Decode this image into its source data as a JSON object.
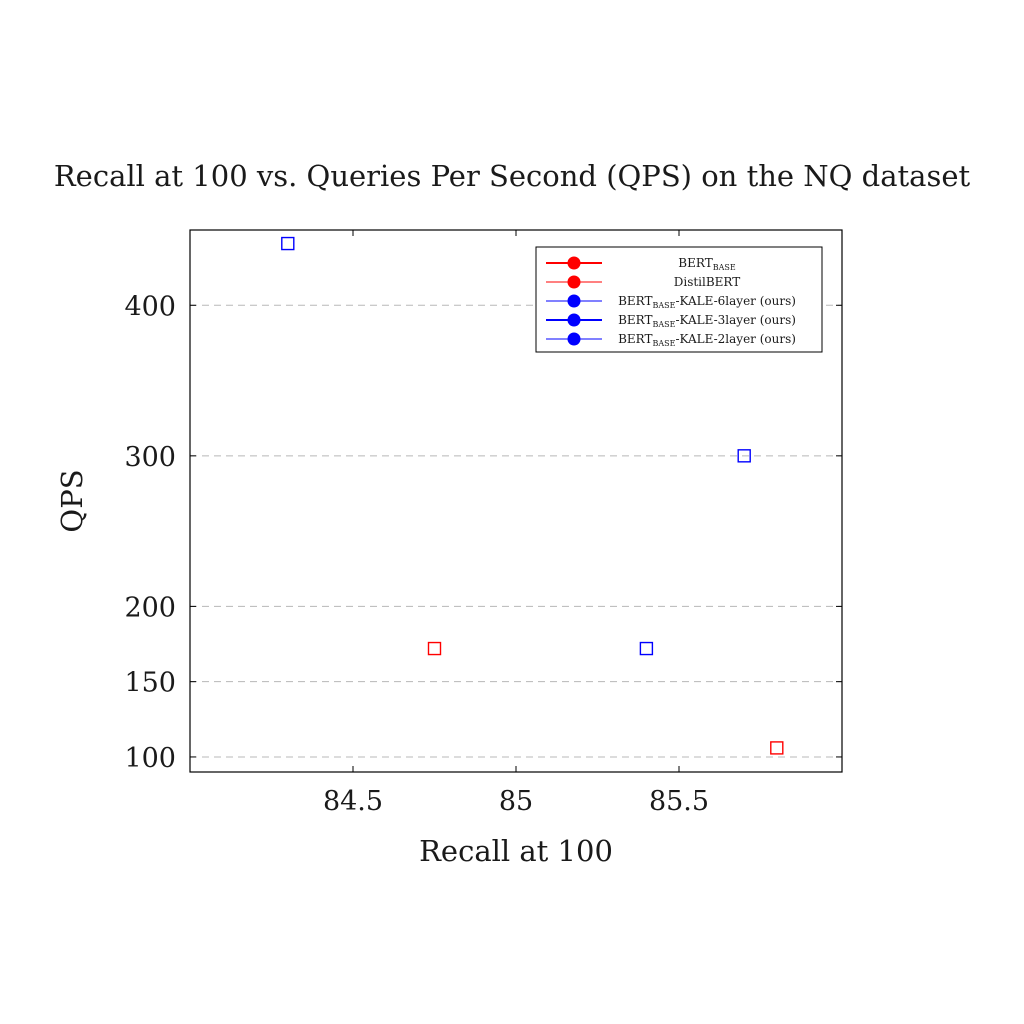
{
  "chart_data": {
    "type": "scatter",
    "title": "Recall at 100 vs. Queries Per Second (QPS) on the NQ dataset",
    "xlabel": "Recall at 100",
    "ylabel": "QPS",
    "xlim": [
      84.0,
      86.0
    ],
    "ylim": [
      90,
      450
    ],
    "x_ticks": [
      84.5,
      85,
      85.5
    ],
    "x_tick_labels": [
      "84.5",
      "85",
      "85.5"
    ],
    "y_ticks": [
      100,
      150,
      200,
      300,
      400
    ],
    "y_tick_labels": [
      "100",
      "150",
      "200",
      "300",
      "400"
    ],
    "grid": "horizontal dashed",
    "legend_position": "top-right",
    "series": [
      {
        "name": "BERT",
        "name_sub": "BASE",
        "name_suffix": "",
        "color": "#ff0000",
        "points": [
          {
            "x": 85.8,
            "y": 106
          }
        ]
      },
      {
        "name": "DistilBERT",
        "name_sub": "",
        "name_suffix": "",
        "color": "#ff0000",
        "points": [
          {
            "x": 84.75,
            "y": 172
          }
        ]
      },
      {
        "name": "BERT",
        "name_sub": "BASE",
        "name_suffix": "-KALE-6layer (ours)",
        "color": "#0000ff",
        "points": [
          {
            "x": 85.4,
            "y": 172
          }
        ]
      },
      {
        "name": "BERT",
        "name_sub": "BASE",
        "name_suffix": "-KALE-3layer (ours)",
        "color": "#0000ff",
        "points": [
          {
            "x": 85.7,
            "y": 300
          }
        ]
      },
      {
        "name": "BERT",
        "name_sub": "BASE",
        "name_suffix": "-KALE-2layer (ours)",
        "color": "#0000ff",
        "points": [
          {
            "x": 84.3,
            "y": 441
          }
        ]
      }
    ]
  }
}
